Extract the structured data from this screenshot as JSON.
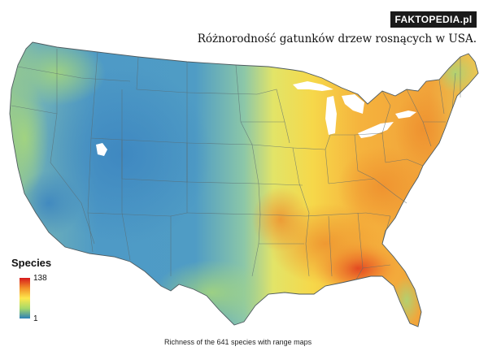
{
  "badge": {
    "text": "FAKTOPEDIA.pl"
  },
  "header": {
    "title": "Różnorodność gatunków drzew rosnących w USA."
  },
  "legend": {
    "title": "Species",
    "max": "138",
    "min": "1",
    "colors": [
      "#d7191c",
      "#f28f28",
      "#fde84c",
      "#a6d96a",
      "#2c7fb8"
    ]
  },
  "caption": "Richness of the 641 species with range maps"
}
